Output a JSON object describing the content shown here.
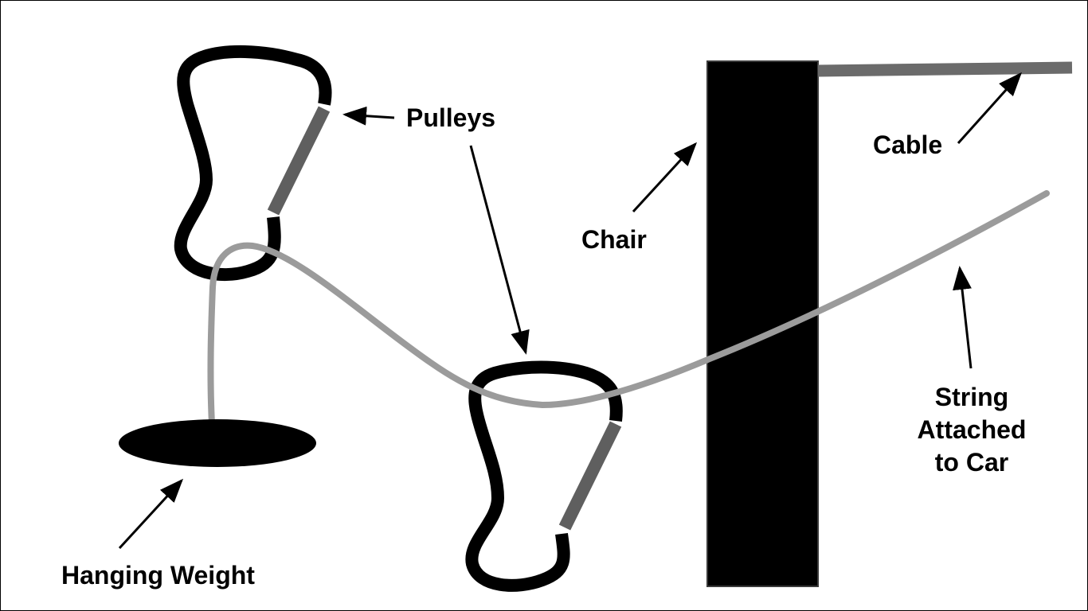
{
  "labels": {
    "pulleys": "Pulleys",
    "chair": "Chair",
    "cable": "Cable",
    "hanging_weight": "Hanging Weight",
    "string_line1": "String",
    "string_line2": "Attached",
    "string_line3": "to Car"
  },
  "colors": {
    "background": "#ffffff",
    "outline": "#000000",
    "pulley_frame": "#000000",
    "pulley_gate": "#5f5f5f",
    "cable": "#6b6b6b",
    "string": "#9b9b9b",
    "chair": "#000000",
    "weight": "#000000",
    "arrow": "#000000"
  }
}
